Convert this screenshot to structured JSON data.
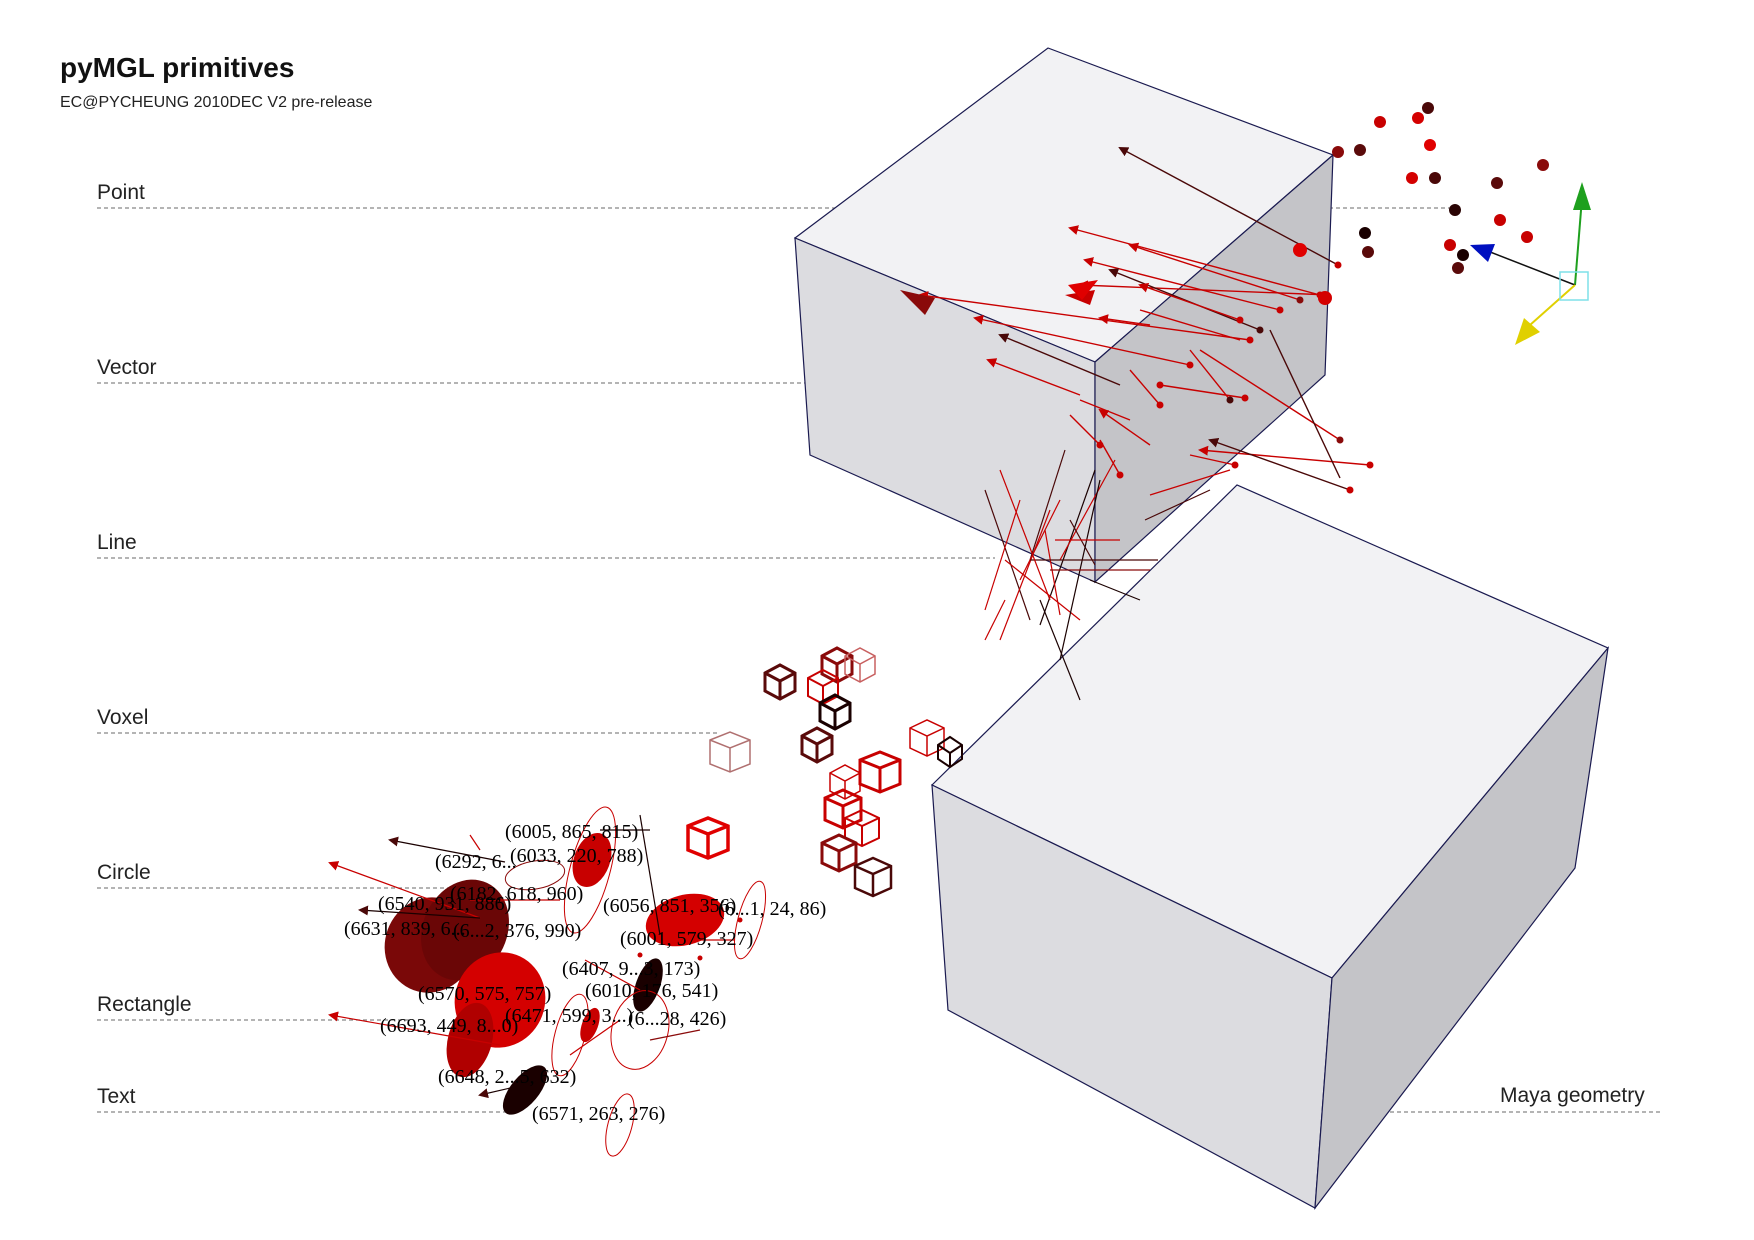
{
  "header": {
    "title": "pyMGL primitives",
    "subtitle": "EC@PYCHEUNG 2010DEC V2 pre-release"
  },
  "categories": {
    "point": "Point",
    "vector": "Vector",
    "line": "Line",
    "voxel": "Voxel",
    "circle": "Circle",
    "rectangle": "Rectangle",
    "text": "Text",
    "geometry": "Maya geometry"
  },
  "coordinate_labels": [
    "(6005, 865, 815)",
    "(6292, 6...",
    "(6033, 220, 788)",
    "(6182, 618, 960)",
    "(6540, 931, 886)",
    "(6056, 851, 356)",
    "(6631, 839, 6...",
    "(6...2, 376, 990)",
    "(6...1, 24, 86)",
    "(6001, 579, 327)",
    "(6407, 9...3, 173)",
    "(6570, 575, 757)",
    "(6010, 176, 541)",
    "(6693, 449, 8...0)",
    "(6471, 599, 3...)",
    "(6...28, 426)",
    "(6648, 2...5, 632)",
    "(6571, 263, 276)"
  ],
  "colors": {
    "dark_red": "#5a0a0a",
    "red": "#d40000",
    "black_red": "#1a0000",
    "box_top": "#f2f2f4",
    "box_left": "#dcdce0",
    "box_right": "#c4c4c8",
    "box_edge": "#1a1a50",
    "manip_green": "#1ea01e",
    "manip_blue": "#0010c0",
    "manip_yellow": "#e0d000",
    "manip_cyan": "#7ee0e8"
  }
}
